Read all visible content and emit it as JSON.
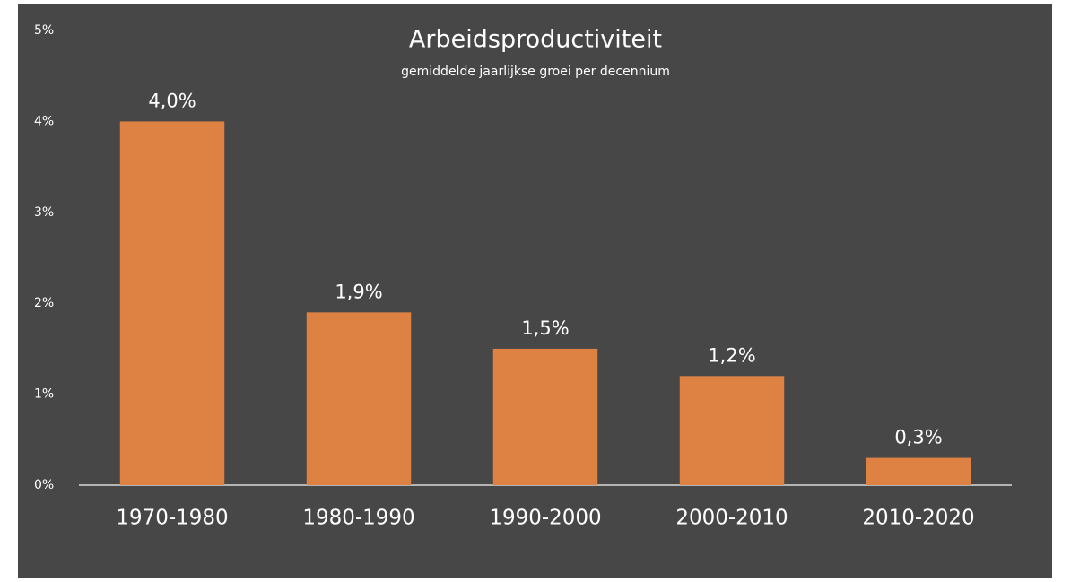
{
  "chart_data": {
    "type": "bar",
    "title": "Arbeidsproductiviteit",
    "subtitle": "gemiddelde jaarlijkse groei per decennium",
    "categories": [
      "1970-1980",
      "1980-1990",
      "1990-2000",
      "2000-2010",
      "2010-2020"
    ],
    "values": [
      4.0,
      1.9,
      1.5,
      1.2,
      0.3
    ],
    "value_labels": [
      "4,0%",
      "1,9%",
      "1,5%",
      "1,2%",
      "0,3%"
    ],
    "color": "#de8244",
    "ylim": [
      0,
      5
    ],
    "yticks": [
      {
        "value": 0,
        "label": "0%"
      },
      {
        "value": 1,
        "label": "1%"
      },
      {
        "value": 2,
        "label": "2%"
      },
      {
        "value": 3,
        "label": "3%"
      },
      {
        "value": 4,
        "label": "4%"
      },
      {
        "value": 5,
        "label": "5%"
      }
    ],
    "grid": false
  }
}
